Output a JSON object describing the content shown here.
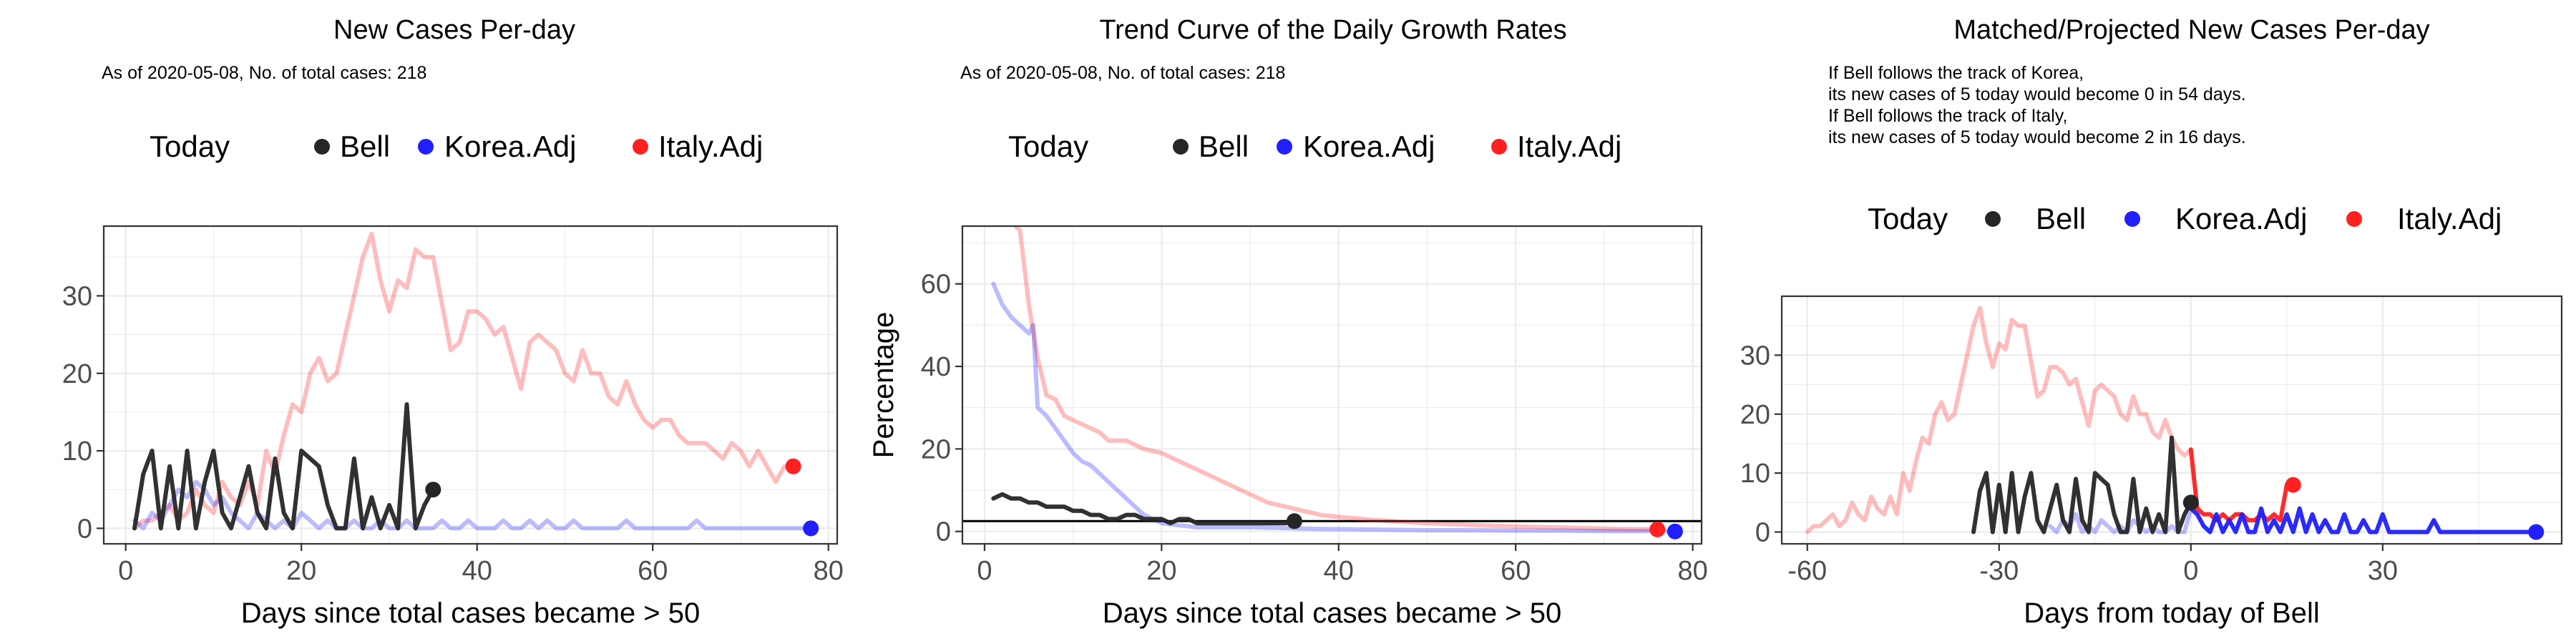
{
  "chart_data": [
    {
      "type": "line",
      "title": "New Cases Per-day",
      "subtitle": "As of 2020-05-08, No. of total cases: 218",
      "legend": {
        "title": "Today",
        "position": "top",
        "items": [
          "Bell",
          "Korea.Adj",
          "Italy.Adj"
        ]
      },
      "xlabel": "Days since total cases became > 50",
      "ylabel": "",
      "xlim": [
        -2.5,
        81
      ],
      "ylim": [
        -2,
        39
      ],
      "xticks": [
        "0",
        "20",
        "40",
        "60",
        "80"
      ],
      "yticks": [
        "0",
        "10",
        "20",
        "30"
      ],
      "series": [
        {
          "name": "Italy.Adj",
          "color": "#ff0000",
          "x": [
            1,
            2,
            3,
            4,
            5,
            6,
            7,
            8,
            9,
            10,
            11,
            12,
            13,
            14,
            15,
            16,
            17,
            18,
            19,
            20,
            21,
            22,
            23,
            24,
            25,
            26,
            27,
            28,
            29,
            30,
            31,
            32,
            33,
            34,
            35,
            36,
            37,
            38,
            39,
            40,
            41,
            42,
            43,
            44,
            45,
            46,
            47,
            48,
            49,
            50,
            51,
            52,
            53,
            54,
            55,
            56,
            57,
            58,
            59,
            60,
            61,
            62,
            63,
            64,
            65,
            66,
            67,
            68,
            69,
            70,
            71,
            72,
            73,
            74,
            75,
            76
          ],
          "values": [
            0,
            1,
            1,
            2,
            3,
            1,
            2,
            5,
            3,
            2,
            6,
            4,
            3,
            6,
            3,
            10,
            7,
            12,
            16,
            15,
            20,
            22,
            19,
            20,
            25,
            30,
            35,
            38,
            32,
            28,
            32,
            31,
            36,
            35,
            35,
            29,
            23,
            24,
            28,
            28,
            27,
            25,
            26,
            22,
            18,
            24,
            25,
            24,
            23,
            20,
            19,
            23,
            20,
            20,
            17,
            16,
            19,
            16,
            14,
            13,
            14,
            14,
            12,
            11,
            11,
            11,
            10,
            9,
            11,
            10,
            8,
            10,
            8,
            6,
            8,
            8
          ],
          "today": {
            "x": 76,
            "y": 8
          }
        },
        {
          "name": "Korea.Adj",
          "color": "#0000ff",
          "x": [
            1,
            2,
            3,
            4,
            5,
            6,
            7,
            8,
            9,
            10,
            11,
            12,
            13,
            14,
            15,
            16,
            17,
            18,
            19,
            20,
            21,
            22,
            23,
            24,
            25,
            26,
            27,
            28,
            29,
            30,
            31,
            32,
            33,
            34,
            35,
            36,
            37,
            38,
            39,
            40,
            41,
            42,
            43,
            44,
            45,
            46,
            47,
            48,
            49,
            50,
            51,
            52,
            53,
            54,
            55,
            56,
            57,
            58,
            59,
            60,
            61,
            62,
            63,
            64,
            65,
            66,
            67,
            68,
            69,
            70,
            71,
            72,
            73,
            74,
            75,
            76,
            77,
            78
          ],
          "values": [
            1,
            0,
            2,
            1,
            3,
            5,
            4,
            6,
            5,
            3,
            4,
            2,
            1,
            0,
            2,
            1,
            0,
            1,
            0,
            2,
            1,
            0,
            1,
            0,
            0,
            1,
            0,
            0,
            1,
            0,
            0,
            1,
            0,
            0,
            0,
            1,
            0,
            0,
            1,
            0,
            0,
            0,
            1,
            0,
            0,
            1,
            0,
            1,
            0,
            0,
            1,
            0,
            0,
            0,
            0,
            0,
            1,
            0,
            0,
            0,
            0,
            0,
            0,
            0,
            1,
            0,
            0,
            0,
            0,
            0,
            0,
            0,
            0,
            0,
            0,
            0,
            0,
            0
          ],
          "today": {
            "x": 78,
            "y": 0
          }
        },
        {
          "name": "Bell",
          "color": "#000000",
          "x": [
            1,
            2,
            3,
            4,
            5,
            6,
            7,
            8,
            9,
            10,
            11,
            12,
            13,
            14,
            15,
            16,
            17,
            18,
            19,
            20,
            21,
            22,
            23,
            24,
            25,
            26,
            27,
            28,
            29,
            30,
            31,
            32,
            33,
            34,
            35
          ],
          "values": [
            0,
            7,
            10,
            0,
            8,
            0,
            10,
            0,
            6,
            10,
            2,
            0,
            4,
            8,
            2,
            0,
            9,
            2,
            0,
            10,
            9,
            8,
            3,
            0,
            0,
            9,
            0,
            4,
            0,
            3,
            0,
            16,
            0,
            3,
            5
          ],
          "today": {
            "x": 35,
            "y": 5
          }
        }
      ]
    },
    {
      "type": "line",
      "title": "Trend Curve of the Daily Growth Rates",
      "subtitle": "As of 2020-05-08, No. of total cases: 218",
      "legend": {
        "title": "Today",
        "position": "top",
        "items": [
          "Bell",
          "Korea.Adj",
          "Italy.Adj"
        ]
      },
      "xlabel": "Days since total cases became > 50",
      "ylabel": "Percentage",
      "xlim": [
        -2.5,
        81
      ],
      "ylim": [
        -3,
        74
      ],
      "xticks": [
        "0",
        "20",
        "40",
        "60",
        "80"
      ],
      "yticks": [
        "0",
        "20",
        "40",
        "60"
      ],
      "hline": 2.5,
      "series": [
        {
          "name": "Italy.Adj",
          "color": "#ff0000",
          "x": [
            3.5,
            4,
            5,
            6,
            7,
            8,
            9,
            10,
            11,
            12,
            13,
            14,
            15,
            16,
            17,
            18,
            20,
            22,
            24,
            26,
            28,
            30,
            32,
            34,
            36,
            38,
            40,
            44,
            48,
            52,
            56,
            60,
            64,
            68,
            72,
            76
          ],
          "values": [
            74,
            73,
            55,
            42,
            33,
            32,
            28,
            27,
            26,
            25,
            24,
            22,
            22,
            22,
            21,
            20,
            19,
            17,
            15,
            13,
            11,
            9,
            7,
            6,
            5,
            4,
            3.5,
            2.8,
            2.2,
            1.8,
            1.5,
            1.2,
            1,
            0.8,
            0.6,
            0.5
          ],
          "today": {
            "x": 76,
            "y": 0.5
          }
        },
        {
          "name": "Korea.Adj",
          "color": "#0000ff",
          "x": [
            1,
            2,
            3,
            4,
            5,
            5.5,
            6,
            7,
            8,
            9,
            10,
            11,
            12,
            13,
            14,
            15,
            16,
            17,
            18,
            19,
            20,
            22,
            24,
            26,
            28,
            30,
            34,
            38,
            42,
            46,
            50,
            55,
            60,
            65,
            70,
            75,
            78
          ],
          "values": [
            60,
            55,
            52,
            50,
            48,
            50,
            30,
            28,
            25,
            22,
            19,
            17,
            16,
            14,
            12,
            10,
            8,
            6,
            4,
            3,
            2,
            1.5,
            1,
            1,
            1,
            1,
            0.8,
            0.6,
            0.5,
            0.4,
            0.3,
            0.3,
            0.2,
            0.2,
            0.1,
            0.1,
            0
          ],
          "today": {
            "x": 78,
            "y": 0
          }
        },
        {
          "name": "Bell",
          "color": "#000000",
          "x": [
            1,
            2,
            3,
            4,
            5,
            6,
            7,
            8,
            9,
            10,
            11,
            12,
            13,
            14,
            15,
            16,
            17,
            18,
            19,
            20,
            21,
            22,
            23,
            24,
            25,
            26,
            27,
            28,
            29,
            30,
            31,
            32,
            33,
            34,
            35
          ],
          "values": [
            8,
            9,
            8,
            8,
            7,
            7,
            6,
            6,
            6,
            5,
            5,
            4,
            4,
            3,
            3,
            4,
            4,
            3,
            3,
            3,
            2,
            3,
            3,
            2,
            2,
            2,
            2,
            2,
            2,
            2,
            2,
            2,
            2,
            2,
            2.5
          ],
          "today": {
            "x": 35,
            "y": 2.5
          }
        }
      ]
    },
    {
      "type": "line",
      "title": "Matched/Projected New Cases Per-day",
      "annotations": [
        "If Bell follows the track of Korea,",
        "its new cases of 5 today would become 0 in 54 days.",
        "If Bell follows the track of Italy,",
        "its new cases of 5 today would become 2 in 16 days."
      ],
      "legend": {
        "title": "Today",
        "position": "top",
        "items": [
          "Bell",
          "Korea.Adj",
          "Italy.Adj"
        ]
      },
      "xlabel": "Days from today of Bell",
      "ylabel": "",
      "xlim": [
        -64,
        58
      ],
      "ylim": [
        -2,
        40
      ],
      "xticks": [
        "-60",
        "-30",
        "0",
        "30"
      ],
      "yticks": [
        "0",
        "10",
        "20",
        "30"
      ],
      "series": [
        {
          "name": "Italy.Adj",
          "color": "#ff0000",
          "x": [
            -60,
            -59,
            -58,
            -57,
            -56,
            -55,
            -54,
            -53,
            -52,
            -51,
            -50,
            -49,
            -48,
            -47,
            -46,
            -45,
            -44,
            -43,
            -42,
            -41,
            -40,
            -39,
            -38,
            -37,
            -36,
            -35,
            -34,
            -33,
            -32,
            -31,
            -30,
            -29,
            -28,
            -27,
            -26,
            -25,
            -24,
            -23,
            -22,
            -21,
            -20,
            -19,
            -18,
            -17,
            -16,
            -15,
            -14,
            -13,
            -12,
            -11,
            -10,
            -9,
            -8,
            -7,
            -6,
            -5,
            -4,
            -3,
            -2,
            -1,
            0,
            1,
            2,
            3,
            4,
            5,
            6,
            7,
            8,
            9,
            10,
            11,
            12,
            13,
            14,
            15,
            16
          ],
          "values": [
            0,
            1,
            1,
            2,
            3,
            1,
            2,
            5,
            3,
            2,
            6,
            4,
            3,
            6,
            3,
            10,
            7,
            12,
            16,
            15,
            20,
            22,
            19,
            20,
            25,
            30,
            35,
            38,
            32,
            28,
            32,
            31,
            36,
            35,
            35,
            29,
            23,
            24,
            28,
            28,
            27,
            25,
            26,
            22,
            18,
            24,
            25,
            24,
            23,
            20,
            19,
            23,
            20,
            20,
            17,
            16,
            19,
            16,
            14,
            13,
            14,
            4,
            3,
            3,
            2,
            3,
            2,
            3,
            3,
            2,
            2,
            3,
            2,
            3,
            2,
            8,
            8
          ],
          "projected_from": 0,
          "today": {
            "x": 16,
            "y": 8
          }
        },
        {
          "name": "Korea.Adj",
          "color": "#0000ff",
          "x": [
            -22,
            -21,
            -20,
            -19,
            -18,
            -17,
            -16,
            -15,
            -14,
            -13,
            -12,
            -11,
            -10,
            -9,
            -8,
            -7,
            -6,
            -5,
            -4,
            -3,
            -2,
            -1,
            0,
            1,
            2,
            3,
            4,
            5,
            6,
            7,
            8,
            9,
            10,
            11,
            12,
            13,
            14,
            15,
            16,
            17,
            18,
            19,
            20,
            21,
            22,
            23,
            24,
            25,
            26,
            27,
            28,
            29,
            30,
            31,
            32,
            33,
            34,
            35,
            36,
            37,
            38,
            39,
            40,
            41,
            42,
            43,
            44,
            45,
            46,
            47,
            48,
            49,
            50,
            51,
            52,
            53,
            54
          ],
          "values": [
            1,
            0,
            2,
            1,
            3,
            0,
            1,
            0,
            2,
            1,
            0,
            1,
            0,
            2,
            1,
            0,
            1,
            0,
            0,
            1,
            0,
            0,
            4,
            3,
            1,
            0,
            3,
            0,
            2,
            0,
            3,
            0,
            0,
            4,
            0,
            2,
            0,
            3,
            0,
            4,
            0,
            3,
            0,
            2,
            0,
            0,
            3,
            0,
            0,
            2,
            0,
            0,
            3,
            0,
            0,
            0,
            0,
            0,
            0,
            0,
            2,
            0,
            0,
            0,
            0,
            0,
            0,
            0,
            0,
            0,
            0,
            0,
            0,
            0,
            0,
            0,
            0
          ],
          "projected_from": 0,
          "today": {
            "x": 54,
            "y": 0
          }
        },
        {
          "name": "Bell",
          "color": "#000000",
          "x": [
            -34,
            -33,
            -32,
            -31,
            -30,
            -29,
            -28,
            -27,
            -26,
            -25,
            -24,
            -23,
            -22,
            -21,
            -20,
            -19,
            -18,
            -17,
            -16,
            -15,
            -14,
            -13,
            -12,
            -11,
            -10,
            -9,
            -8,
            -7,
            -6,
            -5,
            -4,
            -3,
            -2,
            -1,
            0
          ],
          "values": [
            0,
            7,
            10,
            0,
            8,
            0,
            10,
            0,
            6,
            10,
            2,
            0,
            4,
            8,
            2,
            0,
            9,
            2,
            0,
            10,
            9,
            8,
            3,
            0,
            0,
            9,
            0,
            4,
            0,
            3,
            0,
            16,
            0,
            3,
            5
          ],
          "today": {
            "x": 0,
            "y": 5
          }
        }
      ]
    }
  ]
}
